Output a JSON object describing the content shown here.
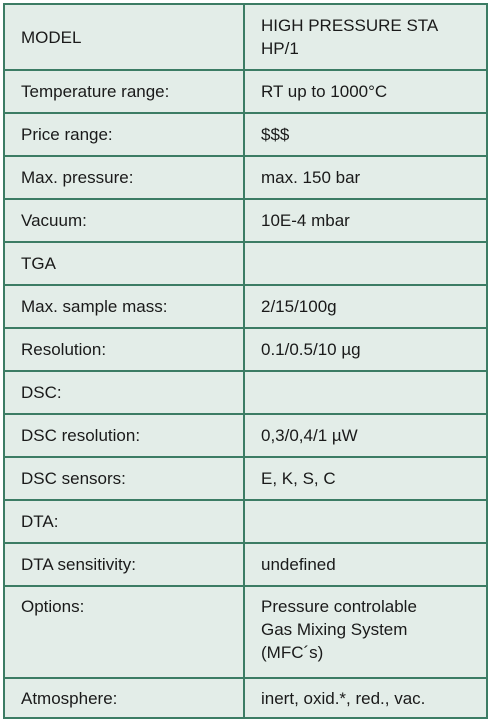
{
  "rows": [
    {
      "label": "MODEL",
      "value": "HIGH PRESSURE STA\nHP/1"
    },
    {
      "label": "Temperature range:",
      "value": "RT up to 1000°C"
    },
    {
      "label": "Price range:",
      "value": "$$$"
    },
    {
      "label": "Max. pressure:",
      "value": "max. 150 bar"
    },
    {
      "label": "Vacuum:",
      "value": "10E-4 mbar"
    },
    {
      "label": "TGA",
      "value": ""
    },
    {
      "label": "Max. sample mass:",
      "value": "2/15/100g"
    },
    {
      "label": "Resolution:",
      "value": "0.1/0.5/10 µg"
    },
    {
      "label": "DSC:",
      "value": ""
    },
    {
      "label": "DSC resolution:",
      "value": "0,3/0,4/1 µW"
    },
    {
      "label": "DSC sensors:",
      "value": "E, K, S, C"
    },
    {
      "label": "DTA:",
      "value": ""
    },
    {
      "label": "DTA sensitivity:",
      "value": "undefined"
    },
    {
      "label": "Options:",
      "value": "Pressure controlable\nGas Mixing System\n(MFC´s)"
    },
    {
      "label": "Atmosphere:",
      "value": "inert, oxid.*, red., vac."
    }
  ]
}
